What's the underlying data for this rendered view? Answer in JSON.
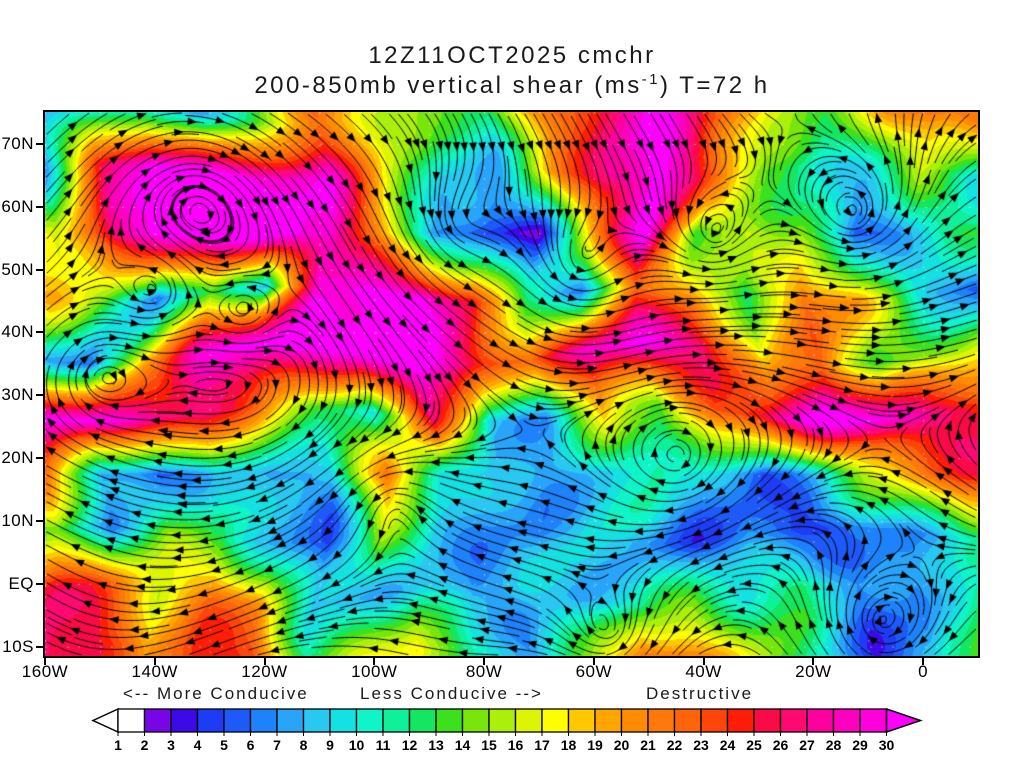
{
  "title": {
    "line1": "12Z11OCT2025 cmchr",
    "line2_pre": "200-850mb vertical shear (ms",
    "line2_sup": "-1",
    "line2_post": ") T=72 h"
  },
  "annotations": {
    "conducive_left": "<-- More Conducive",
    "conducive_right": "Less Conducive -->",
    "destructive": "Destructive"
  },
  "axes": {
    "y_ticks": [
      {
        "label": "70N",
        "lat": 70
      },
      {
        "label": "60N",
        "lat": 60
      },
      {
        "label": "50N",
        "lat": 50
      },
      {
        "label": "40N",
        "lat": 40
      },
      {
        "label": "30N",
        "lat": 30
      },
      {
        "label": "20N",
        "lat": 20
      },
      {
        "label": "10N",
        "lat": 10
      },
      {
        "label": "EQ",
        "lat": 0
      },
      {
        "label": "10S",
        "lat": -10
      }
    ],
    "x_ticks": [
      {
        "label": "160W",
        "lon": -160
      },
      {
        "label": "140W",
        "lon": -140
      },
      {
        "label": "120W",
        "lon": -120
      },
      {
        "label": "100W",
        "lon": -100
      },
      {
        "label": "80W",
        "lon": -80
      },
      {
        "label": "60W",
        "lon": -60
      },
      {
        "label": "40W",
        "lon": -40
      },
      {
        "label": "20W",
        "lon": -20
      },
      {
        "label": "0",
        "lon": 0
      }
    ]
  },
  "colorbar": {
    "labels": [
      "1",
      "2",
      "3",
      "4",
      "5",
      "6",
      "7",
      "8",
      "9",
      "10",
      "11",
      "12",
      "13",
      "14",
      "15",
      "16",
      "17",
      "18",
      "19",
      "20",
      "21",
      "22",
      "23",
      "24",
      "25",
      "26",
      "27",
      "28",
      "29",
      "30"
    ],
    "cell_colors": [
      "#FFFFFF",
      "#7805E6",
      "#3C0AE6",
      "#1E3CF5",
      "#1E5AFA",
      "#1E82FA",
      "#28A5FA",
      "#28C8F0",
      "#14E1E1",
      "#0FF5C8",
      "#0FF09B",
      "#14E65F",
      "#3CE11E",
      "#78E60A",
      "#AAF00A",
      "#DCF500",
      "#FFFF00",
      "#FFC800",
      "#FFA500",
      "#FF8C00",
      "#FF780A",
      "#FF640A",
      "#FF460A",
      "#FF1E05",
      "#FA0A46",
      "#FF0A73",
      "#FF00A0",
      "#FF00BE",
      "#FF00DC"
    ],
    "under_color": "#FFFFFF",
    "over_color": "#FF00FF"
  },
  "chart_data": {
    "type": "heatmap",
    "title": "200-850mb vertical shear (ms-1) T=72 h",
    "valid": "12Z11OCT2025",
    "model": "cmchr",
    "units": "ms-1",
    "levels_shown": [
      1,
      30
    ],
    "extent": {
      "lon": [
        -160,
        10
      ],
      "lat": [
        -11.5,
        75.1
      ]
    },
    "grid": {
      "lons": [
        -160,
        -150,
        -140,
        -130,
        -120,
        -110,
        -100,
        -90,
        -80,
        -70,
        -60,
        -50,
        -40,
        -30,
        -20,
        -10,
        0,
        10
      ],
      "lats": [
        75.1,
        65.4,
        55.8,
        46.2,
        36.5,
        26.9,
        17.3,
        7.7,
        -1.9,
        -11.5
      ],
      "values": [
        [
          7,
          5,
          9,
          8,
          15,
          22,
          18,
          14,
          12,
          20,
          26,
          30,
          24,
          18,
          16,
          20,
          22,
          22
        ],
        [
          6,
          24,
          31,
          31,
          31,
          30,
          18,
          10,
          8,
          18,
          26,
          31,
          22,
          14,
          10,
          12,
          16,
          10
        ],
        [
          16,
          26,
          31,
          31,
          31,
          31,
          20,
          8,
          5,
          4,
          18,
          31,
          12,
          16,
          14,
          5,
          10,
          14
        ],
        [
          20,
          14,
          5,
          14,
          7,
          28,
          31,
          31,
          26,
          12,
          8,
          22,
          18,
          10,
          22,
          18,
          10,
          6
        ],
        [
          10,
          7,
          20,
          28,
          31,
          31,
          31,
          31,
          26,
          22,
          30,
          31,
          28,
          16,
          22,
          12,
          14,
          16
        ],
        [
          31,
          31,
          30,
          28,
          22,
          13,
          9,
          25,
          8,
          8,
          20,
          14,
          24,
          28,
          31,
          30,
          26,
          25
        ],
        [
          22,
          8,
          5,
          11,
          8,
          9,
          21,
          10,
          6,
          7,
          8,
          13,
          9,
          6,
          10,
          16,
          20,
          24
        ],
        [
          12,
          7,
          14,
          13,
          9,
          6,
          16,
          8,
          7,
          5,
          9,
          6,
          5,
          7,
          5,
          7,
          8,
          10
        ],
        [
          25,
          21,
          16,
          21,
          20,
          9,
          10,
          10,
          7,
          9,
          7,
          10,
          13,
          10,
          13,
          8,
          7,
          14
        ],
        [
          28,
          26,
          18,
          24,
          23,
          12,
          16,
          20,
          12,
          8,
          14,
          25,
          19,
          15,
          10,
          5,
          8,
          17
        ]
      ]
    },
    "flow": {
      "zonal": [
        [
          -12,
          -0.9
        ],
        [
          -2,
          -1.1
        ],
        [
          8,
          -1.5
        ],
        [
          17,
          -1.3
        ],
        [
          24,
          -0.4
        ],
        [
          30,
          0.8
        ],
        [
          38,
          1.8
        ],
        [
          48,
          2.2
        ],
        [
          58,
          2.0
        ],
        [
          68,
          1.6
        ],
        [
          75,
          1.2
        ]
      ],
      "vortices": [
        {
          "lon": -133,
          "lat": 62,
          "dir": -1,
          "r": 16,
          "k": 2.6
        },
        {
          "lon": -140,
          "lat": 47,
          "dir": 1,
          "r": 5,
          "k": 2.2
        },
        {
          "lon": -124,
          "lat": 44,
          "dir": 1,
          "r": 4,
          "k": 1.8
        },
        {
          "lon": -85,
          "lat": 57,
          "dir": 1,
          "r": 6,
          "k": 2.2
        },
        {
          "lon": -63,
          "lat": 49,
          "dir": 1,
          "r": 7,
          "k": 2.4
        },
        {
          "lon": -38,
          "lat": 54,
          "dir": 1,
          "r": 6,
          "k": 2.2
        },
        {
          "lon": -12,
          "lat": 57,
          "dir": 1,
          "r": 8,
          "k": 2.6
        },
        {
          "lon": -150,
          "lat": 33,
          "dir": -1,
          "r": 5,
          "k": 1.8
        },
        {
          "lon": -45,
          "lat": 20,
          "dir": -1,
          "r": 6,
          "k": 1.8
        },
        {
          "lon": -8,
          "lat": -7,
          "dir": -1,
          "r": 7,
          "k": 2.4
        },
        {
          "lon": -97,
          "lat": 13,
          "dir": 1,
          "r": 5,
          "k": 1.6
        },
        {
          "lon": -57,
          "lat": -8,
          "dir": -1,
          "r": 5,
          "k": 1.6
        }
      ]
    }
  }
}
